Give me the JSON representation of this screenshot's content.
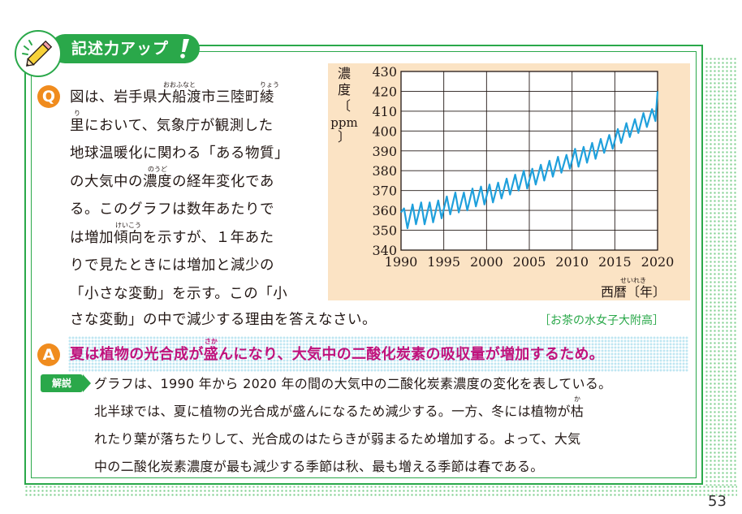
{
  "banner": {
    "title": "記述力アップ"
  },
  "question": {
    "badge": "Q",
    "lines": [
      [
        "図は、岩手県",
        {
          "base": "大船渡",
          "ruby": "おおふなと"
        },
        "市三陸町",
        {
          "base": "綾",
          "ruby": "りょう"
        }
      ],
      [
        {
          "base": "里",
          "ruby": "り"
        },
        "において、気象庁が観測した"
      ],
      [
        "地球温暖化に関わる「ある物質」"
      ],
      [
        "の大気中の",
        {
          "base": "濃度",
          "ruby": "のうど"
        },
        "の経年変化であ"
      ],
      [
        "る。このグラフは数年あたりで"
      ],
      [
        "は増加",
        {
          "base": "傾向",
          "ruby": "けいこう"
        },
        "を示すが、１年あた"
      ],
      [
        "りで見たときには増加と減少の"
      ],
      [
        "「小さな変動」を示す。この「小"
      ]
    ],
    "last_line": "さな変動」の中で減少する理由を答えなさい。",
    "source": "［お茶の水女子大附高］"
  },
  "chart_data": {
    "type": "line",
    "ylabel": "濃度〔ppm〕",
    "xlabel": "西暦〔年〕",
    "xlabel_ruby": "せいれき",
    "x_ticks": [
      1990,
      1995,
      2000,
      2005,
      2010,
      2015,
      2020
    ],
    "y_ticks": [
      340,
      350,
      360,
      370,
      380,
      390,
      400,
      410,
      420,
      430
    ],
    "xlim": [
      1990,
      2020
    ],
    "ylim": [
      340,
      430
    ],
    "grid": true,
    "line_color": "#1fa0dc",
    "series": [
      {
        "annual_maxima": [
          [
            1990.35,
            361
          ],
          [
            1991.35,
            363
          ],
          [
            1992.35,
            364
          ],
          [
            1993.35,
            364
          ],
          [
            1994.35,
            365
          ],
          [
            1995.35,
            367
          ],
          [
            1996.35,
            369
          ],
          [
            1997.35,
            369
          ],
          [
            1998.35,
            371
          ],
          [
            1999.35,
            372
          ],
          [
            2000.35,
            373
          ],
          [
            2001.35,
            374
          ],
          [
            2002.35,
            376
          ],
          [
            2003.35,
            378
          ],
          [
            2004.35,
            380
          ],
          [
            2005.35,
            381
          ],
          [
            2006.35,
            383
          ],
          [
            2007.35,
            385
          ],
          [
            2008.35,
            387
          ],
          [
            2009.35,
            388
          ],
          [
            2010.35,
            391
          ],
          [
            2011.35,
            392
          ],
          [
            2012.35,
            394
          ],
          [
            2013.35,
            396
          ],
          [
            2014.35,
            398
          ],
          [
            2015.35,
            401
          ],
          [
            2016.35,
            404
          ],
          [
            2017.35,
            406
          ],
          [
            2018.35,
            409
          ],
          [
            2019.35,
            411
          ],
          [
            2020.0,
            420
          ]
        ],
        "annual_minima": [
          [
            1990.0,
            359
          ],
          [
            1990.75,
            351
          ],
          [
            1991.75,
            353
          ],
          [
            1992.75,
            353
          ],
          [
            1993.75,
            354
          ],
          [
            1994.75,
            356
          ],
          [
            1995.75,
            358
          ],
          [
            1996.75,
            359
          ],
          [
            1997.75,
            360
          ],
          [
            1998.75,
            362
          ],
          [
            1999.75,
            363
          ],
          [
            2000.75,
            364
          ],
          [
            2001.75,
            366
          ],
          [
            2002.75,
            368
          ],
          [
            2003.75,
            370
          ],
          [
            2004.75,
            371
          ],
          [
            2005.75,
            373
          ],
          [
            2006.75,
            375
          ],
          [
            2007.75,
            377
          ],
          [
            2008.75,
            379
          ],
          [
            2009.75,
            381
          ],
          [
            2010.75,
            382
          ],
          [
            2011.75,
            384
          ],
          [
            2012.75,
            386
          ],
          [
            2013.75,
            389
          ],
          [
            2014.75,
            391
          ],
          [
            2015.75,
            394
          ],
          [
            2016.75,
            397
          ],
          [
            2017.75,
            399
          ],
          [
            2018.75,
            402
          ],
          [
            2019.75,
            405
          ]
        ]
      }
    ]
  },
  "answer": {
    "badge": "A",
    "parts": [
      "夏は植物の光合成が",
      {
        "base": "盛",
        "ruby": "さか"
      },
      "んになり、大気中の二酸化炭素の吸収量が増加するため。"
    ]
  },
  "explanation": {
    "label": "解説",
    "lines": [
      [
        "グラフは、1990 年から 2020 年の間の大気中の二酸化炭素濃度の変化を表している。"
      ],
      [
        "北半球では、夏に植物の光合成が盛んになるため減少する。一方、冬には植物が",
        {
          "base": "枯",
          "ruby": "か"
        }
      ],
      [
        "れたり葉が落ちたりして、光合成のはたらきが弱まるため増加する。よって、大気"
      ],
      [
        "中の二酸化炭素濃度が最も減少する季節は秋、最も増える季節は春である。"
      ]
    ]
  },
  "page_number": "53"
}
